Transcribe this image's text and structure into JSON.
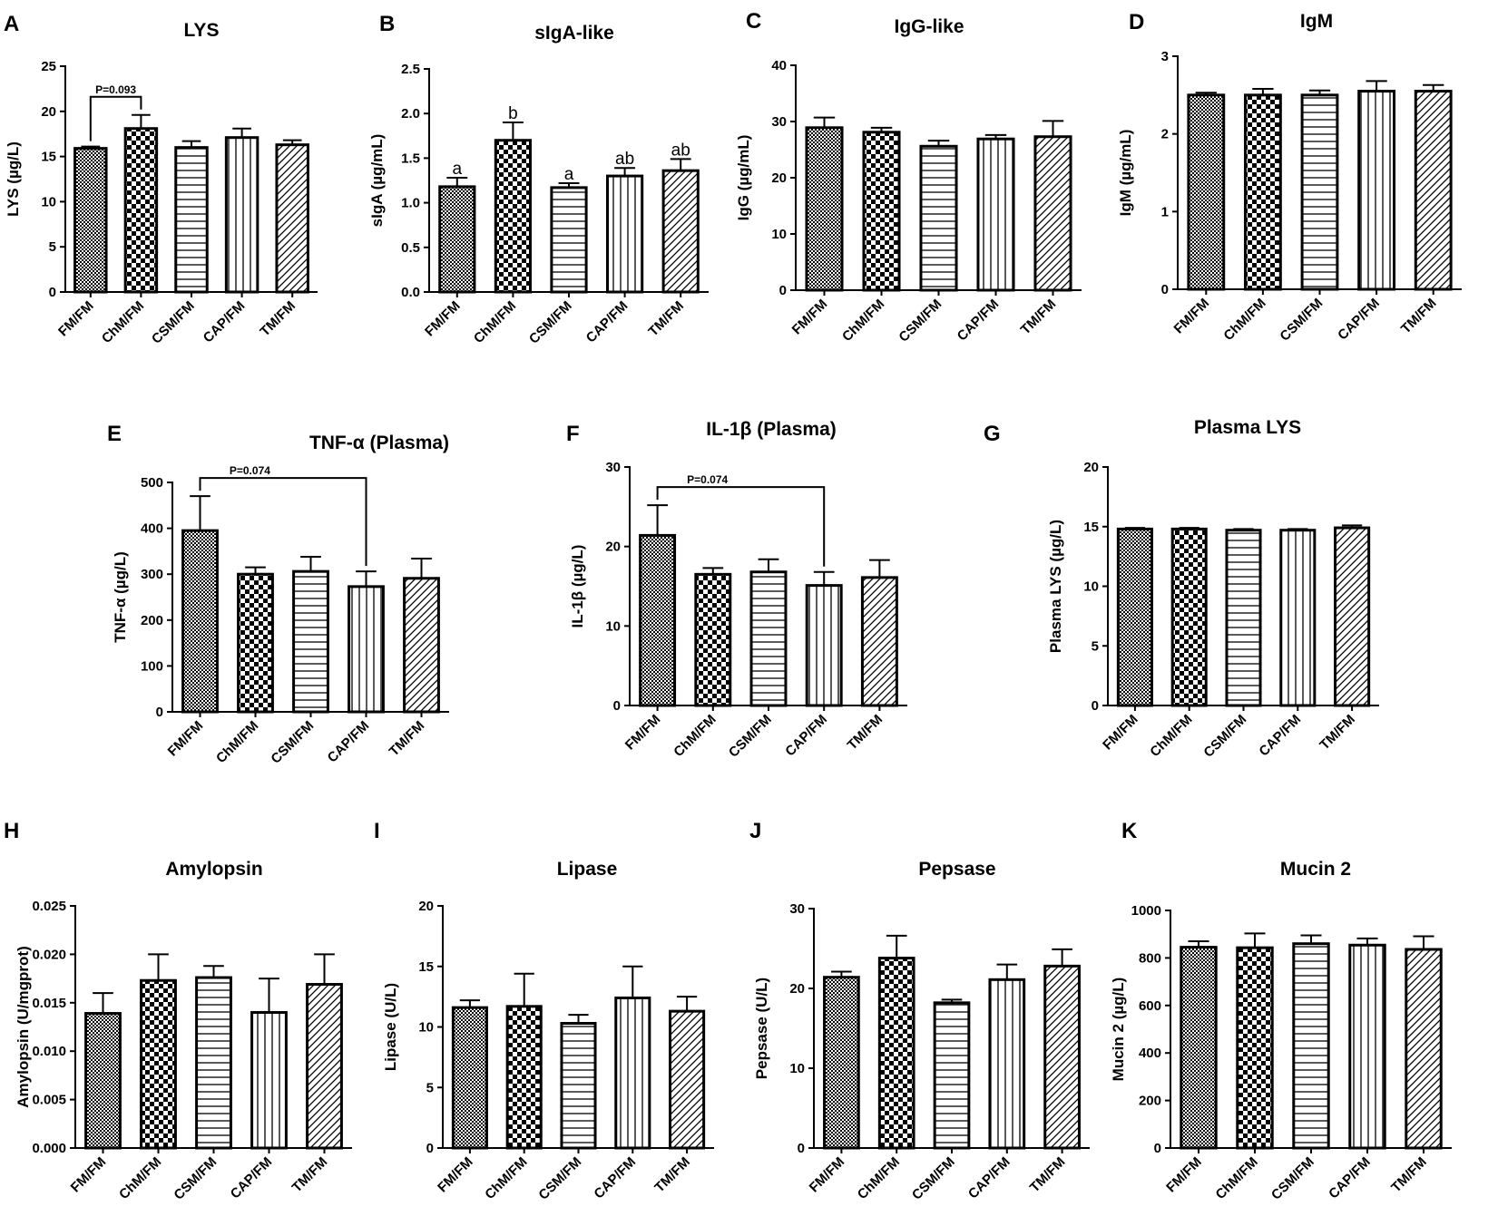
{
  "figure": {
    "categories": [
      "FM/FM",
      "ChM/FM",
      "CSM/FM",
      "CAP/FM",
      "TM/FM"
    ],
    "patterns": [
      "dense-dots",
      "checker",
      "horizontal",
      "vertical",
      "diagonal"
    ],
    "colors": {
      "bar_fill": "#ffffff",
      "bar_stroke": "#000000",
      "pattern": "#000000",
      "background": "#ffffff"
    }
  },
  "chart_data": [
    {
      "id": "A",
      "letter": "A",
      "type": "bar",
      "title": "LYS",
      "ylabel": "LYS (µg/L)",
      "categories": [
        "FM/FM",
        "ChM/FM",
        "CSM/FM",
        "CAP/FM",
        "TM/FM"
      ],
      "values": [
        15.9,
        18.1,
        16.0,
        17.1,
        16.3
      ],
      "errors": [
        0.2,
        1.5,
        0.7,
        1.0,
        0.5
      ],
      "ylim": [
        0,
        25
      ],
      "yticks": [
        "0",
        "5",
        "10",
        "15",
        "20",
        "25"
      ],
      "annotations": [
        {
          "type": "bracket",
          "from": 0,
          "to": 1,
          "text": "P=0.093"
        }
      ]
    },
    {
      "id": "B",
      "letter": "B",
      "type": "bar",
      "title": "sIgA-like",
      "ylabel": "sIgA (µg/mL)",
      "categories": [
        "FM/FM",
        "ChM/FM",
        "CSM/FM",
        "CAP/FM",
        "TM/FM"
      ],
      "values": [
        1.18,
        1.7,
        1.17,
        1.3,
        1.36
      ],
      "errors": [
        0.1,
        0.2,
        0.05,
        0.09,
        0.13
      ],
      "ylim": [
        0,
        2.5
      ],
      "yticks": [
        "0.0",
        "0.5",
        "1.0",
        "1.5",
        "2.0",
        "2.5"
      ],
      "letters": [
        "a",
        "b",
        "a",
        "ab",
        "ab"
      ]
    },
    {
      "id": "C",
      "letter": "C",
      "type": "bar",
      "title": "IgG-like",
      "ylabel": "IgG (µg/mL)",
      "categories": [
        "FM/FM",
        "ChM/FM",
        "CSM/FM",
        "CAP/FM",
        "TM/FM"
      ],
      "values": [
        28.9,
        28.1,
        25.6,
        26.9,
        27.3
      ],
      "errors": [
        1.8,
        0.8,
        1.0,
        0.7,
        2.8
      ],
      "ylim": [
        0,
        40
      ],
      "yticks": [
        "0",
        "10",
        "20",
        "30",
        "40"
      ]
    },
    {
      "id": "D",
      "letter": "D",
      "type": "bar",
      "title": "IgM",
      "ylabel": "IgM (µg/mL)",
      "categories": [
        "FM/FM",
        "ChM/FM",
        "CSM/FM",
        "CAP/FM",
        "TM/FM"
      ],
      "values": [
        2.5,
        2.5,
        2.5,
        2.55,
        2.55
      ],
      "errors": [
        0.03,
        0.08,
        0.06,
        0.13,
        0.08
      ],
      "ylim": [
        0,
        3
      ],
      "yticks": [
        "0",
        "1",
        "2",
        "3"
      ]
    },
    {
      "id": "E",
      "letter": "E",
      "type": "bar",
      "title": "TNF-α (Plasma)",
      "ylabel": "TNF-α (µg/L)",
      "categories": [
        "FM/FM",
        "ChM/FM",
        "CSM/FM",
        "CAP/FM",
        "TM/FM"
      ],
      "values": [
        395,
        300,
        306,
        273,
        291
      ],
      "errors": [
        75,
        15,
        32,
        33,
        43
      ],
      "ylim": [
        0,
        500
      ],
      "yticks": [
        "0",
        "100",
        "200",
        "300",
        "400",
        "500"
      ],
      "annotations": [
        {
          "type": "bracket",
          "from": 0,
          "to": 3,
          "text": "P=0.074"
        }
      ]
    },
    {
      "id": "F",
      "letter": "F",
      "type": "bar",
      "title": "IL-1β (Plasma)",
      "ylabel": "IL-1β (µg/L)",
      "categories": [
        "FM/FM",
        "ChM/FM",
        "CSM/FM",
        "CAP/FM",
        "TM/FM"
      ],
      "values": [
        21.4,
        16.5,
        16.8,
        15.1,
        16.1
      ],
      "errors": [
        3.8,
        0.8,
        1.6,
        1.7,
        2.2
      ],
      "ylim": [
        0,
        30
      ],
      "yticks": [
        "0",
        "10",
        "20",
        "30"
      ],
      "annotations": [
        {
          "type": "bracket",
          "from": 0,
          "to": 3,
          "text": "P=0.074"
        }
      ]
    },
    {
      "id": "G",
      "letter": "G",
      "type": "bar",
      "title": "Plasma LYS",
      "ylabel": "Plasma LYS (µg/L)",
      "categories": [
        "FM/FM",
        "ChM/FM",
        "CSM/FM",
        "CAP/FM",
        "TM/FM"
      ],
      "values": [
        14.8,
        14.8,
        14.7,
        14.7,
        14.9
      ],
      "errors": [
        0.1,
        0.1,
        0.1,
        0.1,
        0.2
      ],
      "ylim": [
        0,
        20
      ],
      "yticks": [
        "0",
        "5",
        "10",
        "15",
        "20"
      ]
    },
    {
      "id": "H",
      "letter": "H",
      "type": "bar",
      "title": "Amylopsin",
      "ylabel": "Amylopsin (U/mgprot)",
      "categories": [
        "FM/FM",
        "ChM/FM",
        "CSM/FM",
        "CAP/FM",
        "TM/FM"
      ],
      "values": [
        0.0139,
        0.0173,
        0.0176,
        0.014,
        0.0169
      ],
      "errors": [
        0.0021,
        0.0027,
        0.0012,
        0.0035,
        0.0031
      ],
      "ylim": [
        0,
        0.025
      ],
      "yticks": [
        "0.000",
        "0.005",
        "0.010",
        "0.015",
        "0.020",
        "0.025"
      ]
    },
    {
      "id": "I",
      "letter": "I",
      "type": "bar",
      "title": "Lipase",
      "ylabel": "Lipase (U/L)",
      "categories": [
        "FM/FM",
        "ChM/FM",
        "CSM/FM",
        "CAP/FM",
        "TM/FM"
      ],
      "values": [
        11.6,
        11.7,
        10.3,
        12.4,
        11.3
      ],
      "errors": [
        0.6,
        2.7,
        0.7,
        2.6,
        1.2
      ],
      "ylim": [
        0,
        20
      ],
      "yticks": [
        "0",
        "5",
        "10",
        "15",
        "20"
      ]
    },
    {
      "id": "J",
      "letter": "J",
      "type": "bar",
      "title": "Pepsase",
      "ylabel": "Pepsase (U/L)",
      "categories": [
        "FM/FM",
        "ChM/FM",
        "CSM/FM",
        "CAP/FM",
        "TM/FM"
      ],
      "values": [
        21.4,
        23.8,
        18.2,
        21.1,
        22.8
      ],
      "errors": [
        0.7,
        2.8,
        0.4,
        1.9,
        2.1
      ],
      "ylim": [
        0,
        30
      ],
      "yticks": [
        "0",
        "10",
        "20",
        "30"
      ]
    },
    {
      "id": "K",
      "letter": "K",
      "type": "bar",
      "title": "Mucin 2",
      "ylabel": "Mucin 2 (µg/L)",
      "categories": [
        "FM/FM",
        "ChM/FM",
        "CSM/FM",
        "CAP/FM",
        "TM/FM"
      ],
      "values": [
        845,
        843,
        860,
        854,
        836
      ],
      "errors": [
        25,
        60,
        35,
        28,
        55
      ],
      "ylim": [
        0,
        1000
      ],
      "yticks": [
        "0",
        "200",
        "400",
        "600",
        "800",
        "1000"
      ]
    }
  ]
}
